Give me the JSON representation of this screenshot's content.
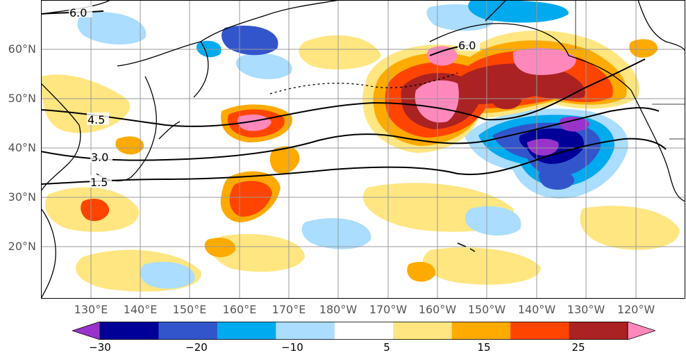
{
  "map": {
    "latitude_labels": [
      "60°N",
      "50°N",
      "40°N",
      "30°N",
      "20°N"
    ],
    "longitude_labels": [
      "130°E",
      "140°E",
      "150°E",
      "160°E",
      "170°E",
      "180°W",
      "170°W",
      "160°W",
      "150°W",
      "140°W",
      "130°W",
      "120°W"
    ],
    "contour_labels": [
      "6.0",
      "6.0",
      "4.5",
      "3.0",
      "1.5"
    ],
    "contour_color": "#000000",
    "gridline_color": "#999999",
    "coastline_color": "#000000"
  },
  "colorbar": {
    "tick_labels": [
      "−30",
      "−20",
      "−10",
      "5",
      "15",
      "25"
    ],
    "colors": [
      "#9933cc",
      "#000099",
      "#3355cc",
      "#00aaee",
      "#aaddff",
      "#ffffff",
      "#ffe680",
      "#ffaa00",
      "#ff4400",
      "#aa2222",
      "#ff88bb"
    ],
    "extend": "both"
  }
}
